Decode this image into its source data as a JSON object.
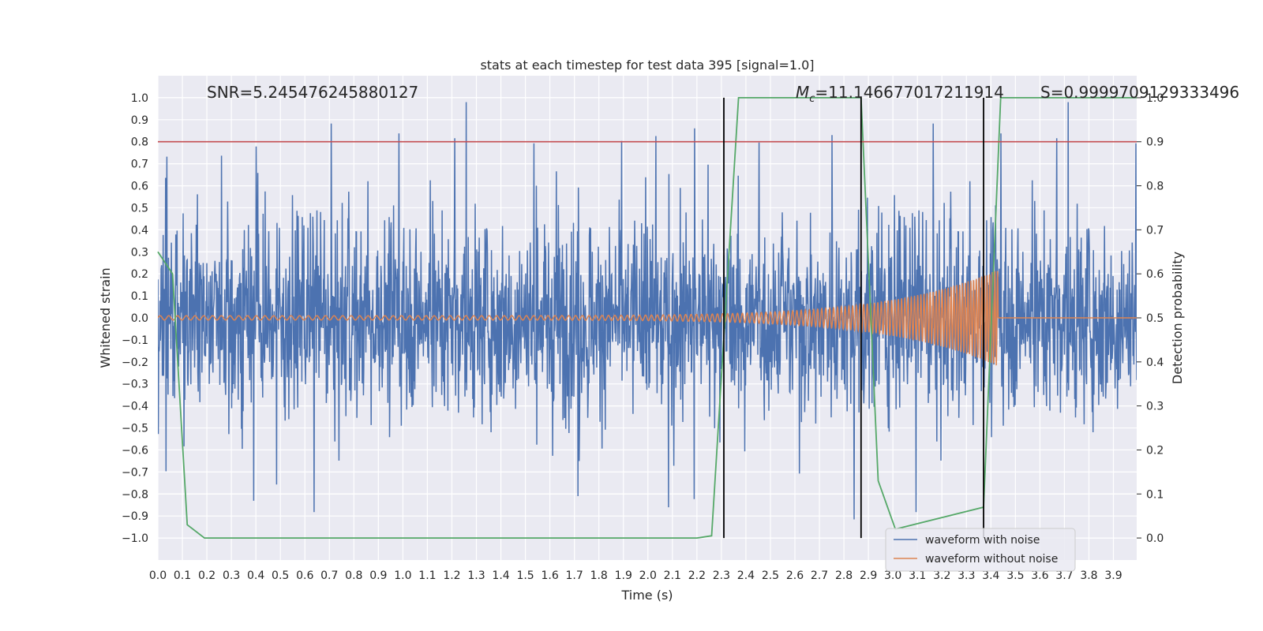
{
  "chart_data": {
    "type": "line",
    "title": "stats at each timestep for test data 395 [signal=1.0]",
    "xlabel": "Time (s)",
    "ylabel": "Whitened strain",
    "y2label": "Detection probability",
    "xlim": [
      0.0,
      3.995
    ],
    "ylim": [
      -1.1,
      1.1
    ],
    "y2lim": [
      -0.05,
      1.05
    ],
    "xticks": [
      "0.0",
      "0.1",
      "0.2",
      "0.3",
      "0.4",
      "0.5",
      "0.6",
      "0.7",
      "0.8",
      "0.9",
      "1.0",
      "1.1",
      "1.2",
      "1.3",
      "1.4",
      "1.5",
      "1.6",
      "1.7",
      "1.8",
      "1.9",
      "2.0",
      "2.1",
      "2.2",
      "2.3",
      "2.4",
      "2.5",
      "2.6",
      "2.7",
      "2.8",
      "2.9",
      "3.0",
      "3.1",
      "3.2",
      "3.3",
      "3.4",
      "3.5",
      "3.6",
      "3.7",
      "3.8",
      "3.9"
    ],
    "yticks": [
      "1.0",
      "0.9",
      "0.8",
      "0.7",
      "0.6",
      "0.5",
      "0.4",
      "0.3",
      "0.2",
      "0.1",
      "0.0",
      "−0.1",
      "−0.2",
      "−0.3",
      "−0.4",
      "−0.5",
      "−0.6",
      "−0.7",
      "−0.8",
      "−0.9",
      "−1.0"
    ],
    "y2ticks": [
      "0.0",
      "0.1",
      "0.2",
      "0.3",
      "0.4",
      "0.5",
      "0.6",
      "0.7",
      "0.8",
      "0.9",
      "1.0"
    ],
    "grid": true,
    "legend_position": "lower-right",
    "annotations": {
      "snr": "SNR=5.245476245880127",
      "mc_symbol": "M",
      "mc_sub": "c",
      "mc_value": "=11.146677017211914",
      "s": "S=0.9999709129333496"
    },
    "threshold": {
      "value": 0.9,
      "axis": "right",
      "color": "#c44e52"
    },
    "vertical_lines": [
      2.31,
      2.87,
      3.37
    ],
    "series": [
      {
        "name": "waveform with noise",
        "axis": "left",
        "color": "#4c72b0",
        "description": "dense noise, amplitude ~ ±0.6 with spikes to ±1.0"
      },
      {
        "name": "waveform without noise",
        "axis": "left",
        "color": "#dd8452",
        "chirp": {
          "start_amp": 0.01,
          "peak_amp": 0.22,
          "peak_time": 3.43,
          "f_start": 28,
          "f_end": 95
        }
      },
      {
        "axis": "right",
        "color": "#55a868",
        "x": [
          0.0,
          0.06,
          0.12,
          0.19,
          2.2,
          2.26,
          2.37,
          2.87,
          2.94,
          3.01,
          3.37,
          3.44,
          3.995
        ],
        "y": [
          0.65,
          0.6,
          0.03,
          0.0,
          0.0,
          0.005,
          1.0,
          1.0,
          0.13,
          0.02,
          0.07,
          1.0,
          1.0
        ]
      }
    ]
  }
}
